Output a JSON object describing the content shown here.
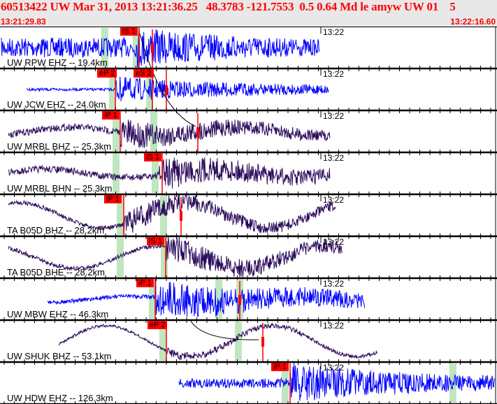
{
  "header": {
    "title": "60513422 UW Mar 31, 2013 13:21:36.25   48.3783 -121.7553  0.5 0.64 Md le amyw UW 01    5",
    "start_time": "13:21:29.83",
    "end_time": "13:22:16.60"
  },
  "colors": {
    "header_text": "#ff0000",
    "pick": "#ff0000",
    "short_period": "#0000ff",
    "broadband": "#2a0a5a",
    "window": "#bfe6bf"
  },
  "tick_label": "13:22",
  "channels": [
    {
      "label": "UW RPW EHZ -- 19.4km",
      "picks": [
        "iS 1"
      ]
    },
    {
      "label": "UW JCW EHZ -- 24.0km",
      "picks": [
        "eP 2",
        "eS 2"
      ]
    },
    {
      "label": "UW MRBL BHZ -- 25.3km",
      "picks": [
        "iP 1"
      ]
    },
    {
      "label": "UW MRBL BHN -- 25.3km",
      "picks": [
        "iS 1"
      ]
    },
    {
      "label": "TA B05D BHZ -- 28.2km",
      "picks": [
        "iP 1"
      ]
    },
    {
      "label": "TA B05D BHE -- 28.2km",
      "picks": [
        "iS 1"
      ]
    },
    {
      "label": "UW MBW EHZ -- 46.3km",
      "picks": [
        "iP 1"
      ]
    },
    {
      "label": "UW SHUK BHZ -- 53.1km",
      "picks": [
        "eP 2"
      ]
    },
    {
      "label": "UW HDW EHZ -- 126.3km",
      "picks": [
        "iP 1"
      ]
    }
  ]
}
